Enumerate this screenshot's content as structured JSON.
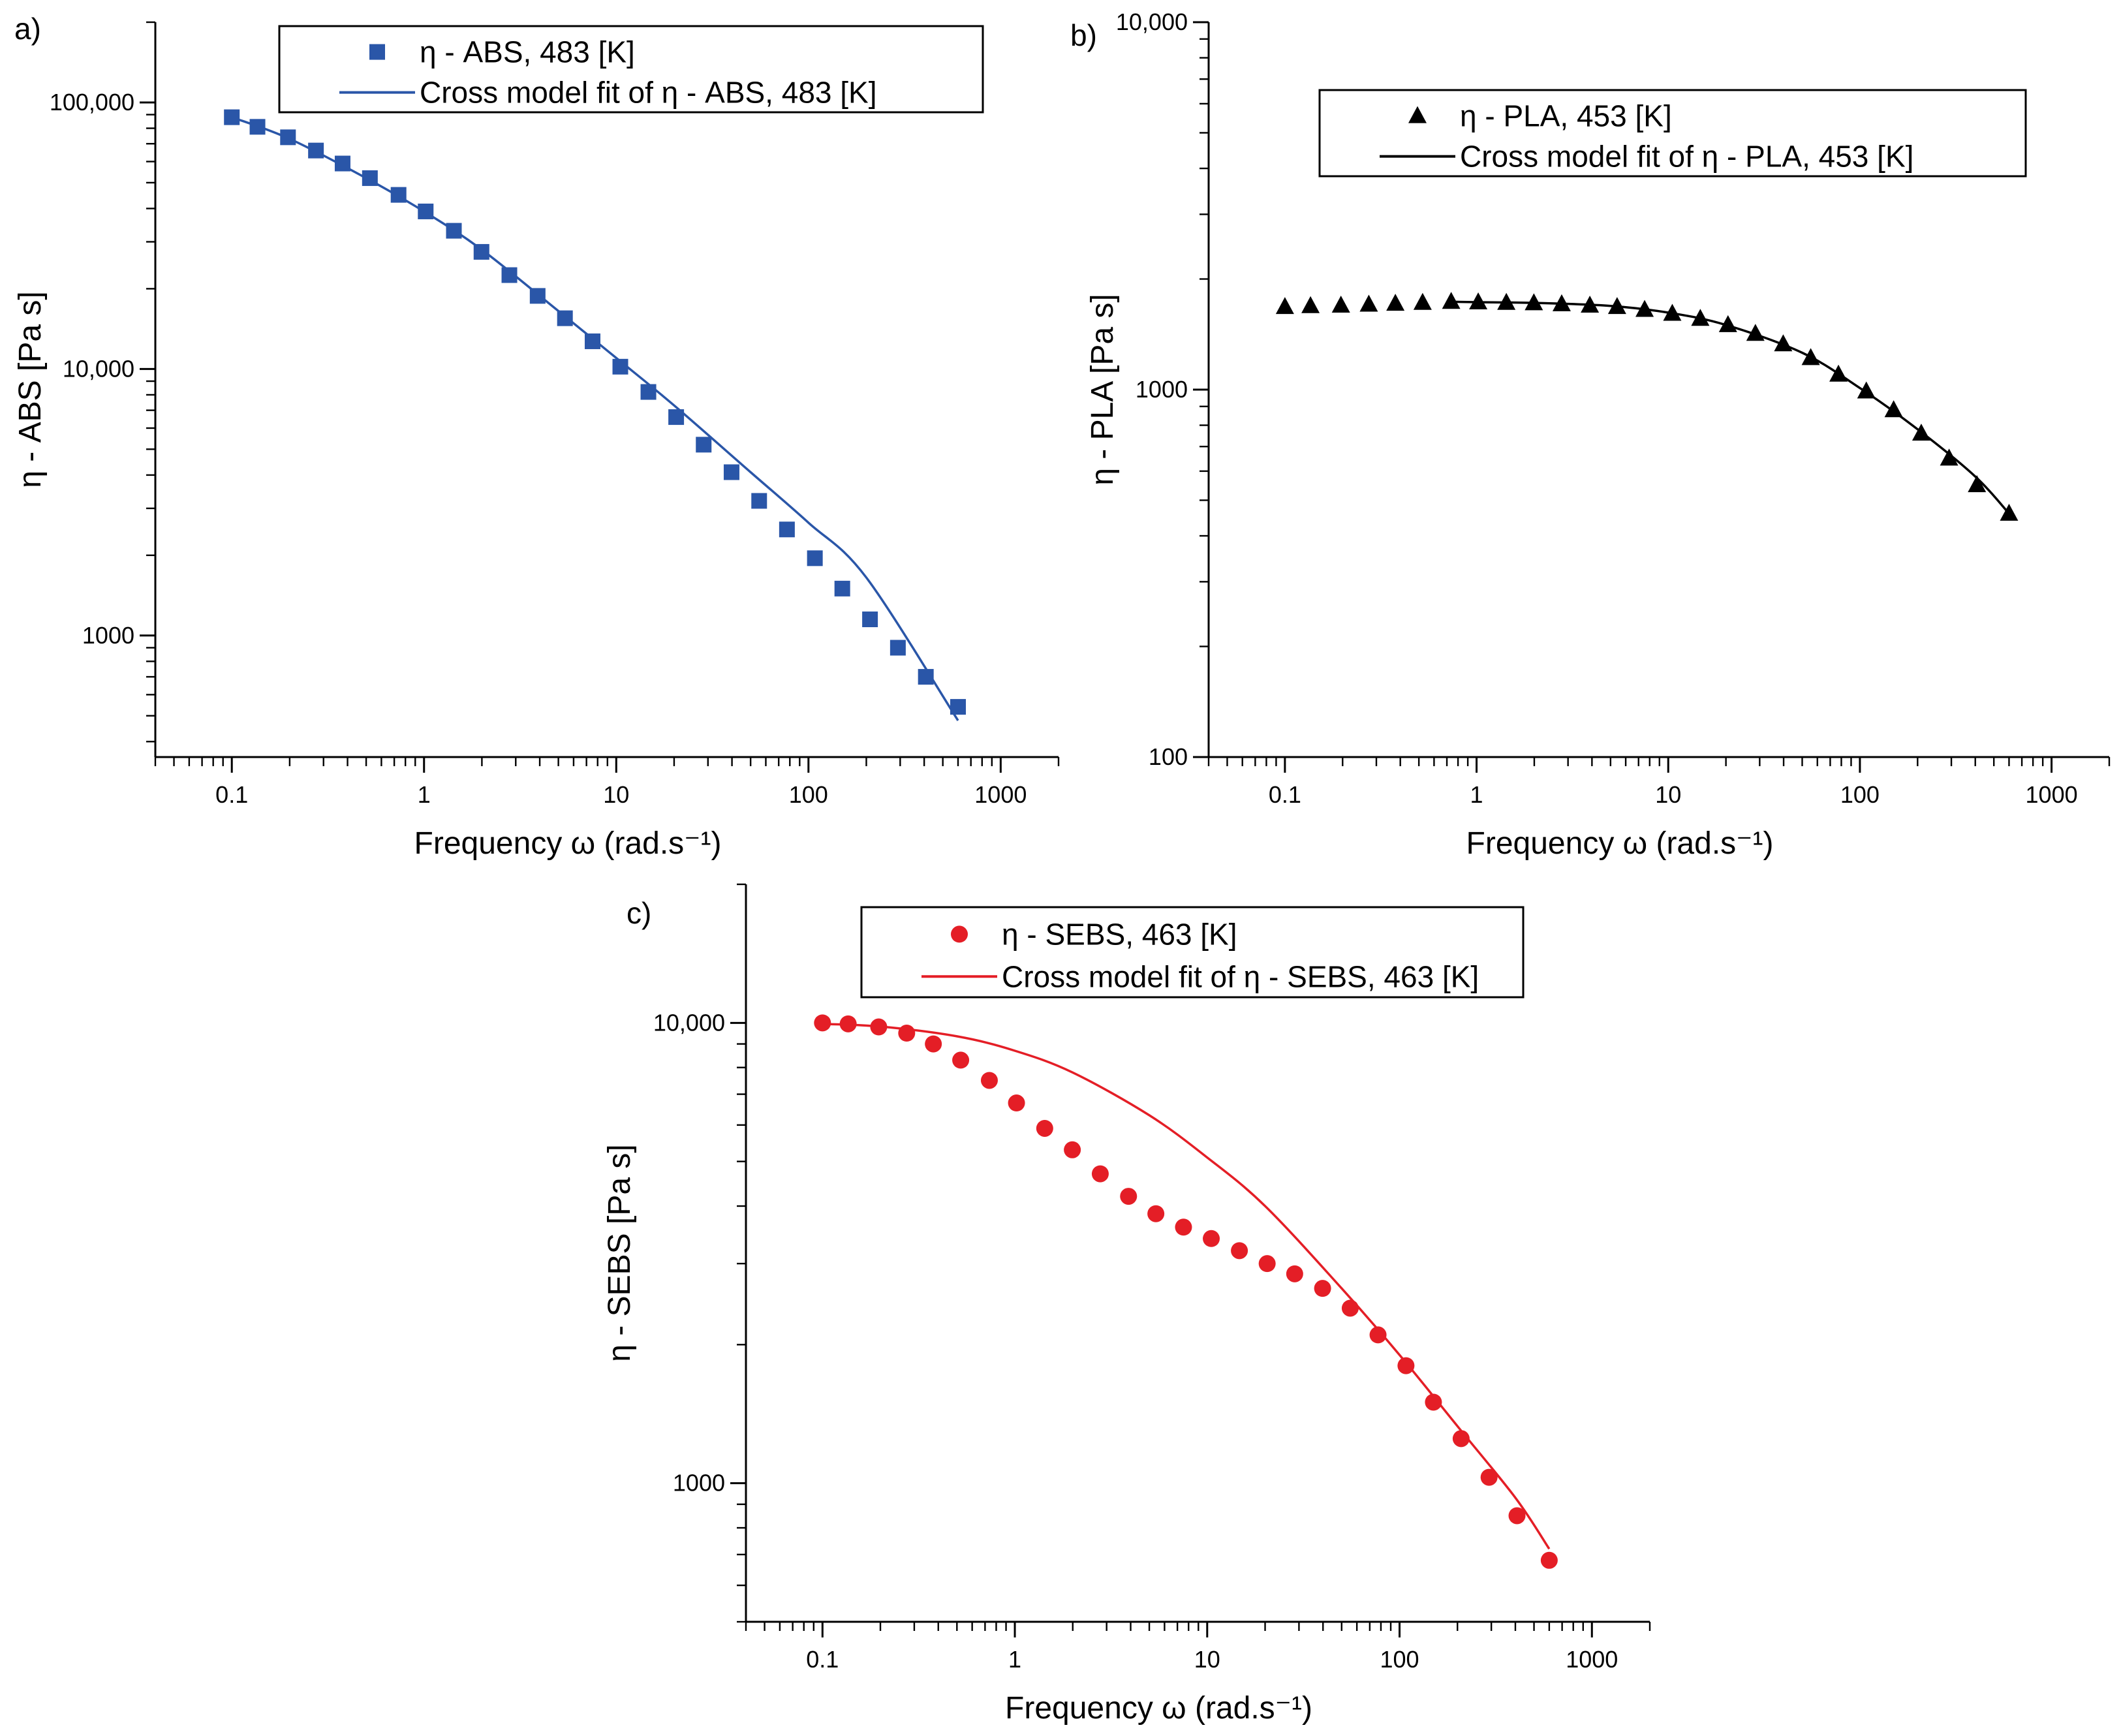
{
  "chart_data": [
    {
      "panel": "a)",
      "type": "line",
      "xscale": "log",
      "yscale": "log",
      "xlim": [
        0.04,
        2000
      ],
      "ylim": [
        350,
        200000
      ],
      "xticks": [
        0.1,
        1,
        10,
        100,
        1000
      ],
      "xtick_labels": [
        "0.1",
        "1",
        "10",
        "100",
        "1000"
      ],
      "yticks": [
        1000,
        10000,
        100000
      ],
      "ytick_labels": [
        "1000",
        "10,000",
        "100,000"
      ],
      "xlabel": "Frequency ω (rad.s⁻¹)",
      "ylabel": "η - ABS [Pa s]",
      "legend_position": "top-right",
      "series": [
        {
          "name": "η - ABS, 483 [K]",
          "kind": "scatter",
          "marker": "square",
          "color": "#2a56a8",
          "x": [
            0.1,
            0.136,
            0.196,
            0.274,
            0.377,
            0.523,
            0.737,
            1.02,
            1.43,
            1.99,
            2.78,
            3.9,
            5.41,
            7.53,
            10.5,
            14.7,
            20.5,
            28.5,
            39.8,
            55.4,
            77.3,
            108,
            150,
            209,
            292,
            408,
            600
          ],
          "y": [
            88000,
            81000,
            74000,
            66000,
            59000,
            52000,
            45000,
            39000,
            33000,
            27500,
            22500,
            18800,
            15500,
            12700,
            10200,
            8200,
            6600,
            5200,
            4100,
            3200,
            2500,
            1950,
            1500,
            1150,
            900,
            700,
            540
          ]
        },
        {
          "name": "Cross model fit of η - ABS, 483 [K]",
          "kind": "line",
          "color": "#2a56a8",
          "x": [
            0.1,
            0.2,
            0.5,
            1,
            2,
            5,
            10,
            20,
            50,
            100,
            200,
            600
          ],
          "y": [
            88000,
            73000,
            52000,
            39000,
            28000,
            16500,
            11000,
            7300,
            4100,
            2650,
            1650,
            480
          ]
        }
      ]
    },
    {
      "panel": "b)",
      "type": "line",
      "xscale": "log",
      "yscale": "log",
      "xlim": [
        0.04,
        2000
      ],
      "ylim": [
        100,
        10000
      ],
      "xticks": [
        0.1,
        1,
        10,
        100,
        1000
      ],
      "xtick_labels": [
        "0.1",
        "1",
        "10",
        "100",
        "1000"
      ],
      "yticks": [
        100,
        1000,
        10000
      ],
      "ytick_labels": [
        "100",
        "1000",
        "10,000"
      ],
      "xlabel": "Frequency ω (rad.s⁻¹)",
      "ylabel": "η - PLA [Pa s]",
      "legend_position": "top-right",
      "series": [
        {
          "name": "η - PLA, 453 [K]",
          "kind": "scatter",
          "marker": "triangle",
          "color": "#000000",
          "x": [
            0.1,
            0.136,
            0.196,
            0.274,
            0.377,
            0.523,
            0.737,
            1.02,
            1.43,
            1.99,
            2.78,
            3.9,
            5.41,
            7.53,
            10.5,
            14.7,
            20.5,
            28.5,
            39.8,
            55.4,
            77.3,
            108,
            150,
            209,
            292,
            408,
            600
          ],
          "y": [
            1680,
            1690,
            1695,
            1705,
            1715,
            1725,
            1735,
            1730,
            1725,
            1720,
            1710,
            1695,
            1680,
            1650,
            1610,
            1560,
            1500,
            1420,
            1330,
            1220,
            1100,
            990,
            880,
            760,
            650,
            550,
            460
          ]
        },
        {
          "name": "Cross model fit of η - PLA, 453 [K]",
          "kind": "line",
          "color": "#000000",
          "x": [
            0.7,
            1,
            2,
            5,
            10,
            20,
            50,
            100,
            200,
            400,
            600
          ],
          "y": [
            1735,
            1730,
            1722,
            1690,
            1620,
            1500,
            1260,
            1010,
            780,
            580,
            460
          ]
        }
      ]
    },
    {
      "panel": "c)",
      "type": "line",
      "xscale": "log",
      "yscale": "log",
      "xlim": [
        0.04,
        2000
      ],
      "ylim": [
        500,
        20000
      ],
      "xticks": [
        0.1,
        1,
        10,
        100,
        1000
      ],
      "xtick_labels": [
        "0.1",
        "1",
        "10",
        "100",
        "1000"
      ],
      "yticks": [
        1000,
        10000
      ],
      "ytick_labels": [
        "1000",
        "10,000"
      ],
      "xlabel": "Frequency ω (rad.s⁻¹)",
      "ylabel": "η - SEBS [Pa s]",
      "legend_position": "top-right",
      "series": [
        {
          "name": "η - SEBS, 463 [K]",
          "kind": "scatter",
          "marker": "circle",
          "color": "#e41e26",
          "x": [
            0.1,
            0.136,
            0.196,
            0.274,
            0.377,
            0.523,
            0.737,
            1.02,
            1.43,
            1.99,
            2.78,
            3.9,
            5.41,
            7.53,
            10.5,
            14.7,
            20.5,
            28.5,
            39.8,
            55.4,
            77.3,
            108,
            150,
            209,
            292,
            408,
            600
          ],
          "y": [
            10000,
            9950,
            9800,
            9500,
            9000,
            8300,
            7500,
            6700,
            5900,
            5300,
            4700,
            4200,
            3850,
            3600,
            3400,
            3200,
            3000,
            2850,
            2650,
            2400,
            2100,
            1800,
            1500,
            1250,
            1030,
            850,
            680
          ]
        },
        {
          "name": "Cross model fit of η - SEBS, 463 [K]",
          "kind": "line",
          "color": "#e41e26",
          "x": [
            0.1,
            0.2,
            0.5,
            1,
            2,
            5,
            10,
            20,
            50,
            100,
            200,
            400,
            600
          ],
          "y": [
            9950,
            9820,
            9350,
            8700,
            7800,
            6300,
            5100,
            4000,
            2650,
            1900,
            1330,
            930,
            720
          ]
        }
      ]
    }
  ]
}
